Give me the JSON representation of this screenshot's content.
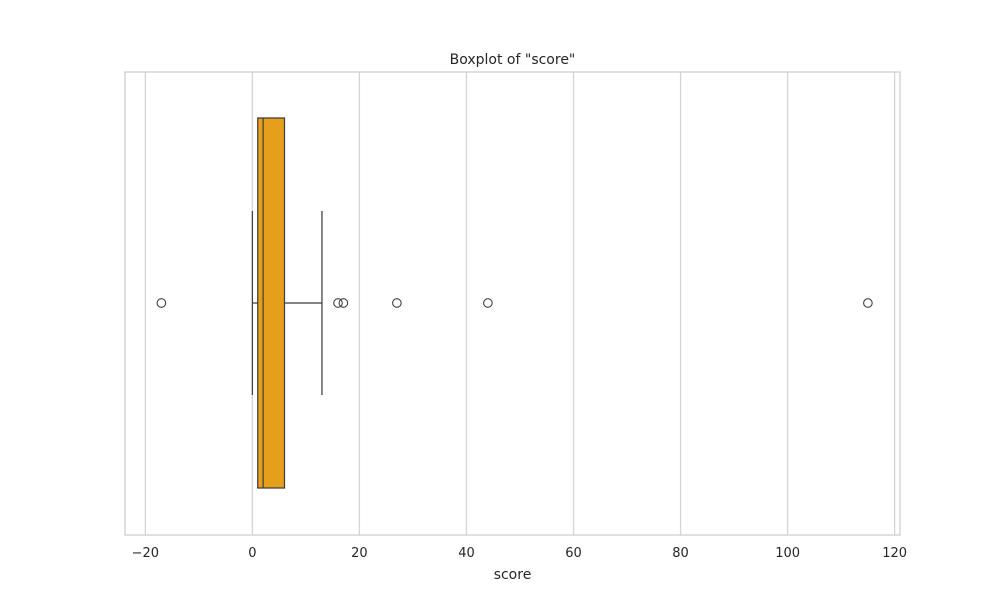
{
  "chart_data": {
    "type": "boxplot",
    "title": "Boxplot of \"score\"",
    "xlabel": "score",
    "ylabel": "",
    "xlim": [
      -23.8,
      121.0
    ],
    "xticks": [
      -20,
      0,
      20,
      40,
      60,
      80,
      100,
      120
    ],
    "grid": true,
    "orientation": "horizontal",
    "box": {
      "whisker_low": 0,
      "q1": 1,
      "median": 2,
      "q3": 6,
      "whisker_high": 13
    },
    "outliers": [
      -17,
      16,
      17,
      27,
      44,
      115
    ],
    "colors": {
      "box_fill": "#e69f1b",
      "box_edge": "#3f3f3f",
      "grid": "#d3d3d3",
      "frame": "#cccccc",
      "text": "#262626"
    }
  }
}
